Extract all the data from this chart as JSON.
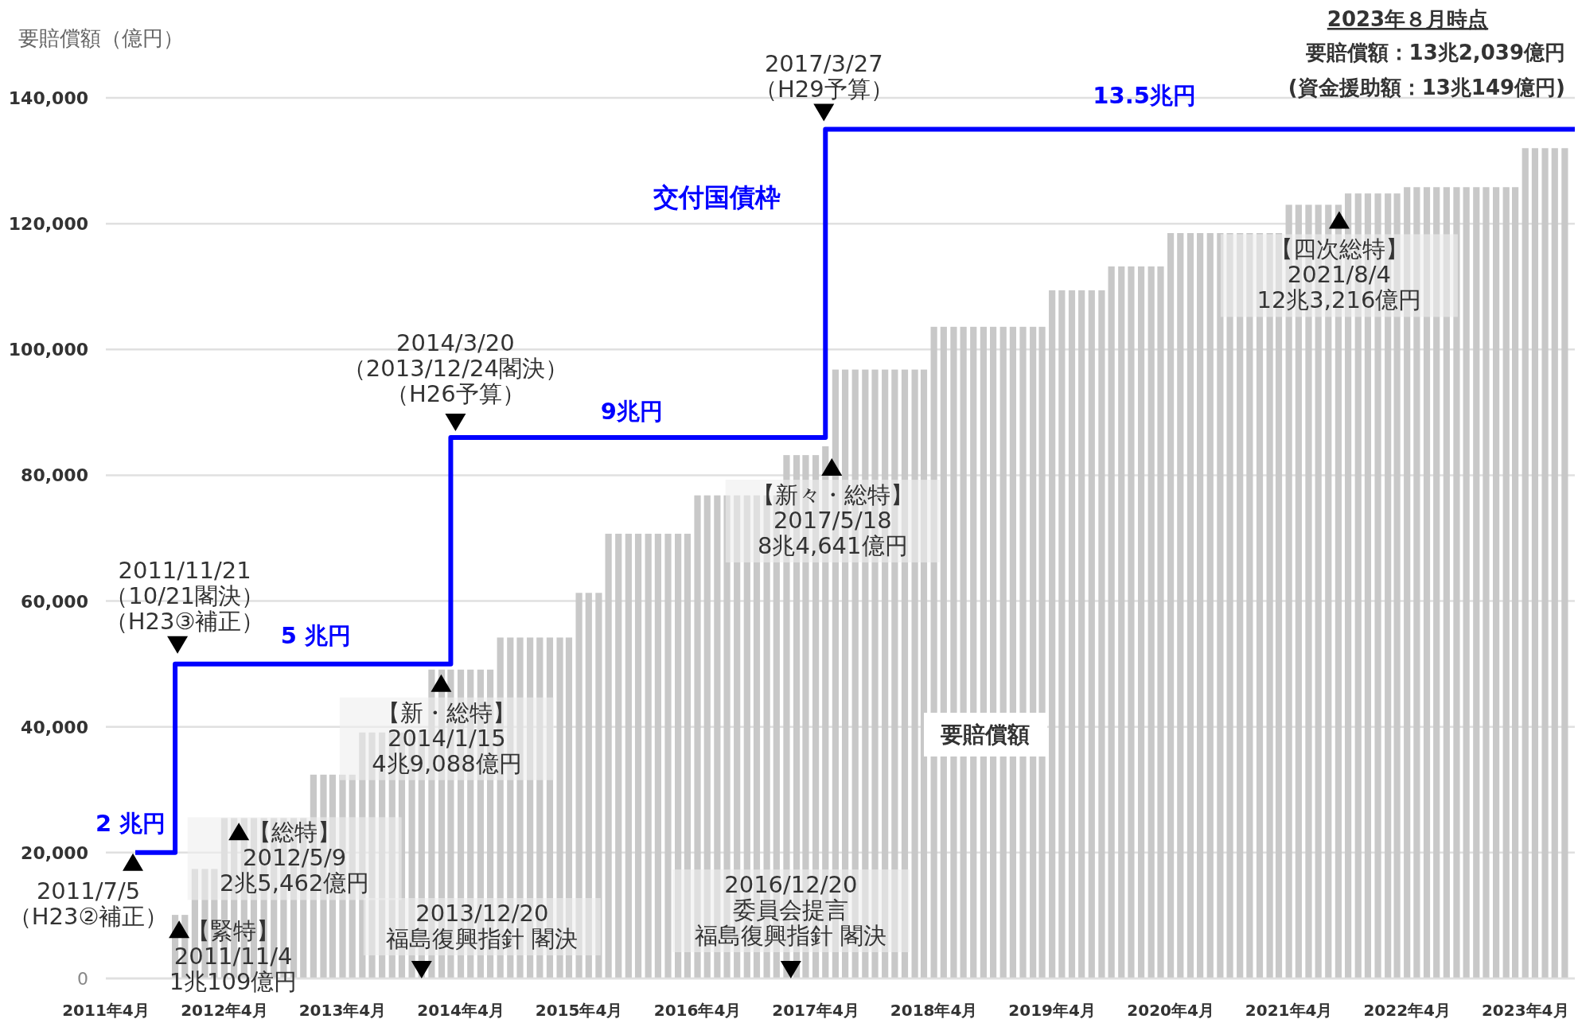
{
  "chart_data": {
    "type": "bar",
    "ylabel": "要賠償額（億円）",
    "xlim": [
      "2011-04",
      "2023-09"
    ],
    "xticks": [
      {
        "value": "2011-04",
        "label": "2011年4月"
      },
      {
        "value": "2012-04",
        "label": "2012年4月"
      },
      {
        "value": "2013-04",
        "label": "2013年4月"
      },
      {
        "value": "2014-04",
        "label": "2014年4月"
      },
      {
        "value": "2015-04",
        "label": "2015年4月"
      },
      {
        "value": "2016-04",
        "label": "2016年4月"
      },
      {
        "value": "2017-04",
        "label": "2017年4月"
      },
      {
        "value": "2018-04",
        "label": "2018年4月"
      },
      {
        "value": "2019-04",
        "label": "2019年4月"
      },
      {
        "value": "2020-04",
        "label": "2020年4月"
      },
      {
        "value": "2021-04",
        "label": "2021年4月"
      },
      {
        "value": "2022-04",
        "label": "2022年4月"
      },
      {
        "value": "2023-04",
        "label": "2023年4月"
      }
    ],
    "ylim": [
      0,
      140000
    ],
    "yticks": [
      0,
      {
        "value": 20000,
        "label": "20,000"
      },
      {
        "value": 40000,
        "label": "40,000"
      },
      {
        "value": 60000,
        "label": "60,000"
      },
      {
        "value": 80000,
        "label": "80,000"
      },
      {
        "value": 100000,
        "label": "100,000"
      },
      {
        "value": 120000,
        "label": "120,000"
      },
      {
        "value": 140000,
        "label": "140,000"
      }
    ],
    "grid": "y",
    "series": [
      {
        "name": "要賠償額",
        "color": "#c8c8c8",
        "x": [
          "2011-11",
          "2011-12",
          "2012-01",
          "2012-02",
          "2012-03",
          "2012-04",
          "2012-05",
          "2012-06",
          "2012-07",
          "2012-08",
          "2012-09",
          "2012-10",
          "2012-11",
          "2012-12",
          "2013-01",
          "2013-02",
          "2013-03",
          "2013-04",
          "2013-05",
          "2013-06",
          "2013-07",
          "2013-08",
          "2013-09",
          "2013-10",
          "2013-11",
          "2013-12",
          "2014-01",
          "2014-02",
          "2014-03",
          "2014-04",
          "2014-05",
          "2014-06",
          "2014-07",
          "2014-08",
          "2014-09",
          "2014-10",
          "2014-11",
          "2014-12",
          "2015-01",
          "2015-02",
          "2015-03",
          "2015-04",
          "2015-05",
          "2015-06",
          "2015-07",
          "2015-08",
          "2015-09",
          "2015-10",
          "2015-11",
          "2015-12",
          "2016-01",
          "2016-02",
          "2016-03",
          "2016-04",
          "2016-05",
          "2016-06",
          "2016-07",
          "2016-08",
          "2016-09",
          "2016-10",
          "2016-11",
          "2016-12",
          "2017-01",
          "2017-02",
          "2017-03",
          "2017-04",
          "2017-05",
          "2017-06",
          "2017-07",
          "2017-08",
          "2017-09",
          "2017-10",
          "2017-11",
          "2017-12",
          "2018-01",
          "2018-02",
          "2018-03",
          "2018-04",
          "2018-05",
          "2018-06",
          "2018-07",
          "2018-08",
          "2018-09",
          "2018-10",
          "2018-11",
          "2018-12",
          "2019-01",
          "2019-02",
          "2019-03",
          "2019-04",
          "2019-05",
          "2019-06",
          "2019-07",
          "2019-08",
          "2019-09",
          "2019-10",
          "2019-11",
          "2019-12",
          "2020-01",
          "2020-02",
          "2020-03",
          "2020-04",
          "2020-05",
          "2020-06",
          "2020-07",
          "2020-08",
          "2020-09",
          "2020-10",
          "2020-11",
          "2020-12",
          "2021-01",
          "2021-02",
          "2021-03",
          "2021-04",
          "2021-05",
          "2021-06",
          "2021-07",
          "2021-08",
          "2021-09",
          "2021-10",
          "2021-11",
          "2021-12",
          "2022-01",
          "2022-02",
          "2022-03",
          "2022-04",
          "2022-05",
          "2022-06",
          "2022-07",
          "2022-08",
          "2022-09",
          "2022-10",
          "2022-11",
          "2022-12",
          "2023-01",
          "2023-02",
          "2023-03",
          "2023-04",
          "2023-05",
          "2023-06",
          "2023-07",
          "2023-08"
        ],
        "values": [
          10100,
          10100,
          17400,
          17400,
          17400,
          25500,
          25500,
          25500,
          25500,
          25500,
          25500,
          25500,
          25500,
          25500,
          32400,
          32400,
          32400,
          32400,
          32400,
          39100,
          39100,
          39100,
          39100,
          39100,
          39100,
          39100,
          49100,
          49100,
          49100,
          49100,
          49100,
          49100,
          49100,
          54200,
          54200,
          54200,
          54200,
          54200,
          54200,
          54200,
          54200,
          61300,
          61300,
          61300,
          70700,
          70700,
          70700,
          70700,
          70700,
          70700,
          70700,
          70700,
          70700,
          76800,
          76800,
          76800,
          76800,
          76800,
          76800,
          76800,
          76800,
          76800,
          83200,
          83200,
          83200,
          83200,
          84600,
          96800,
          96800,
          96800,
          96800,
          96800,
          96800,
          96800,
          96800,
          96800,
          96800,
          103600,
          103600,
          103600,
          103600,
          103600,
          103600,
          103600,
          103600,
          103600,
          103600,
          103600,
          103600,
          109400,
          109400,
          109400,
          109400,
          109400,
          109400,
          113200,
          113200,
          113200,
          113200,
          113200,
          113200,
          118500,
          118500,
          118500,
          118500,
          118500,
          118500,
          118500,
          118500,
          118500,
          118500,
          118500,
          118500,
          123000,
          123000,
          123000,
          123000,
          123000,
          123000,
          124800,
          124800,
          124800,
          124800,
          124800,
          124800,
          125800,
          125800,
          125800,
          125800,
          125800,
          125800,
          125800,
          125800,
          125800,
          125800,
          125800,
          125800,
          132000,
          132000,
          132000,
          132000,
          132000
        ]
      },
      {
        "name": "交付国債枠",
        "type": "step",
        "color": "#0000ff",
        "x": [
          "2011-07",
          "2011-11",
          "2014-03",
          "2017-05",
          "2023-09"
        ],
        "values": [
          20000,
          50000,
          86000,
          135000,
          135000
        ]
      }
    ],
    "annotations": [
      {
        "text": "2011/7/5\n（H23②補正）",
        "x": "2011-07",
        "y": 20000
      },
      {
        "text": "2011/11/21\n（10/21閣決）",
        "x": "2011-11",
        "y": 50000
      },
      {
        "text": "（H23③補正）",
        "x": "2011-11",
        "y": 50000
      },
      {
        "text": "2014/3/20\n（2013/12/24閣決）",
        "x": "2014-03",
        "y": 86000
      },
      {
        "text": "（H26予算）",
        "x": "2014-03",
        "y": 86000
      },
      {
        "text": "2017/3/27\n（H29予算）",
        "x": "2017-05",
        "y": 135000
      },
      {
        "text": "【緊特】\n2011/11/4\n1兆109億円",
        "x": "2011-11",
        "y": 10100
      },
      {
        "text": "【総特】\n2012/5/9\n2兆5,462億円",
        "x": "2012-05",
        "y": 25500
      },
      {
        "text": "【新・総特】\n2014/1/15\n4兆9,088億円",
        "x": "2014-01",
        "y": 49100
      },
      {
        "text": "【新々・総特】\n2017/5/18\n8兆4,641億円",
        "x": "2017-05",
        "y": 84600
      },
      {
        "text": "【四次総特】\n2021/8/4\n12兆3,216億円",
        "x": "2021-09",
        "y": 123000
      },
      {
        "text": "2013/12/20\n福島復興指針 閣決",
        "x": "2013-12",
        "y": 0
      },
      {
        "text": "2016/12/20\n委員会提言",
        "x": "2016-12",
        "y": 0
      },
      {
        "text": "福島復興指針 閣決",
        "x": "2016-12",
        "y": 0
      },
      {
        "text": "2 兆円",
        "x": "2011-07",
        "y": 20000
      },
      {
        "text": "5 兆円",
        "x": "2013-01",
        "y": 50000
      },
      {
        "text": "9兆円",
        "x": "2015-09",
        "y": 86000
      },
      {
        "text": "13.5兆円",
        "x": "2020-01",
        "y": 135000
      },
      "2023年８月時点",
      "要賠償額：13兆2,039億円",
      "(資金援助額：13兆149億円)"
    ]
  }
}
